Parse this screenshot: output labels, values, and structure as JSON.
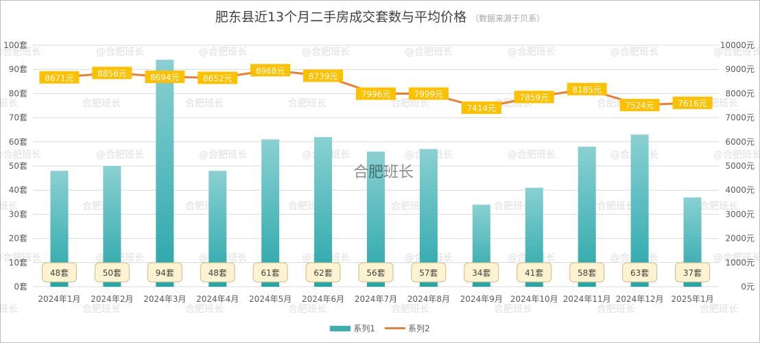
{
  "chart_data": {
    "type": "bar+line",
    "title": "肥东县近13个月二手房成交套数与平均价格",
    "subtitle": "（数据来源于贝系）",
    "categories": [
      "2024年1月",
      "2024年2月",
      "2024年3月",
      "2024年4月",
      "2024年5月",
      "2024年6月",
      "2024年7月",
      "2024年8月",
      "2024年9月",
      "2024年10月",
      "2024年11月",
      "2024年12月",
      "2025年1月"
    ],
    "series": [
      {
        "name": "系列1",
        "type": "bar",
        "axis": "left",
        "unit": "套",
        "color": "#3bb0b3",
        "values": [
          48,
          50,
          94,
          48,
          61,
          62,
          56,
          57,
          34,
          41,
          58,
          63,
          37
        ]
      },
      {
        "name": "系列2",
        "type": "line",
        "axis": "right",
        "unit": "元",
        "color": "#ed7d31",
        "label_color": "#ffc000",
        "values": [
          8671,
          8856,
          8694,
          8652,
          8968,
          8739,
          7996,
          7999,
          7414,
          7859,
          8185,
          7524,
          7616
        ]
      }
    ],
    "y_left": {
      "range": [
        0,
        100
      ],
      "step": 10,
      "tick_suffix": "套"
    },
    "y_right": {
      "range": [
        0,
        10000
      ],
      "step": 1000,
      "tick_suffix": "元"
    },
    "grid": true,
    "legend": "bottom"
  },
  "watermark": {
    "small": "@合肥班长",
    "plain": "合肥班长",
    "center": "合肥班长"
  }
}
